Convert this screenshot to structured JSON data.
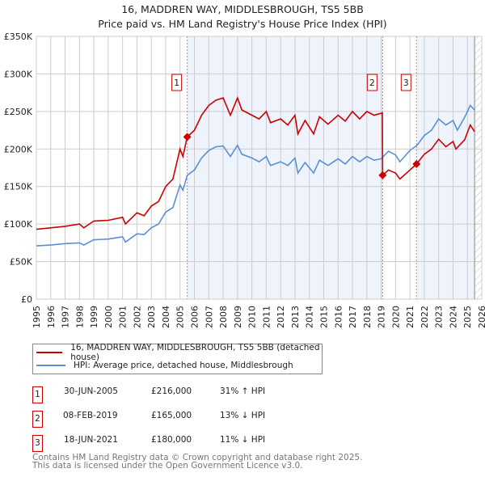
{
  "title": "16, MADDREN WAY, MIDDLESBROUGH, TS5 5BB",
  "subtitle": "Price paid vs. HM Land Registry's House Price Index (HPI)",
  "chart_data": {
    "type": "line",
    "title": "16, MADDREN WAY, MIDDLESBROUGH, TS5 5BB",
    "xlim": [
      1995,
      2026
    ],
    "ylim": [
      0,
      350000
    ],
    "yticks": [
      0,
      50000,
      100000,
      150000,
      200000,
      250000,
      300000,
      350000
    ],
    "ytick_labels": [
      "£0",
      "£50K",
      "£100K",
      "£150K",
      "£200K",
      "£250K",
      "£300K",
      "£350K"
    ],
    "xticks": [
      "1995",
      "1996",
      "1997",
      "1998",
      "1999",
      "2000",
      "2001",
      "2002",
      "2003",
      "2004",
      "2005",
      "2006",
      "2007",
      "2008",
      "2009",
      "2010",
      "2011",
      "2012",
      "2013",
      "2014",
      "2015",
      "2016",
      "2017",
      "2018",
      "2019",
      "2020",
      "2021",
      "2022",
      "2023",
      "2024",
      "2025",
      "2026"
    ],
    "grid": true,
    "legend_placement": "below",
    "series": [
      {
        "name": "16, MADDREN WAY, MIDDLESBROUGH, TS5 5BB (detached house)",
        "color": "#cc0000",
        "x": [
          1995,
          1996,
          1997,
          1998,
          1998.3,
          1999,
          2000,
          2001,
          2001.2,
          2002,
          2002.5,
          2003,
          2003.5,
          2004,
          2004.5,
          2005,
          2005.2,
          2005.5,
          2006,
          2006.5,
          2007,
          2007.5,
          2008,
          2008.5,
          2009,
          2009.3,
          2010,
          2010.5,
          2011,
          2011.3,
          2012,
          2012.5,
          2013,
          2013.2,
          2013.7,
          2014.3,
          2014.7,
          2015.3,
          2016,
          2016.5,
          2017,
          2017.5,
          2018,
          2018.5,
          2019.08,
          2019.1,
          2019.5,
          2020,
          2020.3,
          2021,
          2021.46,
          2022,
          2022.5,
          2023,
          2023.5,
          2024,
          2024.2,
          2024.8,
          2025.2,
          2025.5
        ],
        "y": [
          93000,
          95000,
          97000,
          100000,
          95000,
          104000,
          105000,
          109000,
          100000,
          115000,
          111000,
          124000,
          130000,
          150000,
          160000,
          200000,
          190000,
          216000,
          225000,
          245000,
          258000,
          265000,
          268000,
          245000,
          268000,
          252000,
          245000,
          240000,
          250000,
          235000,
          240000,
          232000,
          245000,
          220000,
          238000,
          220000,
          243000,
          233000,
          245000,
          237000,
          250000,
          240000,
          250000,
          245000,
          248000,
          165000,
          172000,
          168000,
          160000,
          172000,
          180000,
          193000,
          200000,
          213000,
          203000,
          210000,
          200000,
          212000,
          232000,
          223000
        ]
      },
      {
        "name": "HPI: Average price, detached house, Middlesbrough",
        "color": "#5b8fd4",
        "x": [
          1995,
          1996,
          1997,
          1998,
          1998.3,
          1999,
          2000,
          2001,
          2001.2,
          2002,
          2002.5,
          2003,
          2003.5,
          2004,
          2004.5,
          2005,
          2005.2,
          2005.5,
          2006,
          2006.5,
          2007,
          2007.5,
          2008,
          2008.5,
          2009,
          2009.3,
          2010,
          2010.5,
          2011,
          2011.3,
          2012,
          2012.5,
          2013,
          2013.2,
          2013.7,
          2014.3,
          2014.7,
          2015.3,
          2016,
          2016.5,
          2017,
          2017.5,
          2018,
          2018.5,
          2019,
          2019.5,
          2020,
          2020.3,
          2021,
          2021.5,
          2022,
          2022.5,
          2023,
          2023.5,
          2024,
          2024.3,
          2024.8,
          2025.2,
          2025.5
        ],
        "y": [
          71000,
          72000,
          74000,
          75000,
          72000,
          79000,
          80000,
          83000,
          76000,
          87000,
          86000,
          95000,
          100000,
          116000,
          122000,
          152000,
          145000,
          165000,
          172000,
          188000,
          198000,
          203000,
          204000,
          190000,
          205000,
          193000,
          188000,
          183000,
          190000,
          178000,
          183000,
          178000,
          188000,
          168000,
          182000,
          168000,
          185000,
          178000,
          187000,
          180000,
          190000,
          183000,
          190000,
          185000,
          187000,
          197000,
          192000,
          183000,
          198000,
          205000,
          218000,
          225000,
          240000,
          232000,
          238000,
          225000,
          242000,
          258000,
          252000
        ]
      }
    ],
    "sales": [
      {
        "label": "1",
        "x": 2005.5,
        "y": 216000
      },
      {
        "label": "2",
        "x": 2019.1,
        "y": 165000
      },
      {
        "label": "3",
        "x": 2021.46,
        "y": 180000
      }
    ],
    "shaded_ranges": [
      [
        2005.5,
        2019.1
      ],
      [
        2021.46,
        2025.5
      ]
    ],
    "forecast_from": 2025.5
  },
  "legend": [
    {
      "label": "16, MADDREN WAY, MIDDLESBROUGH, TS5 5BB (detached house)",
      "color": "#cc0000"
    },
    {
      "label": "HPI: Average price, detached house, Middlesbrough",
      "color": "#5b8fd4"
    }
  ],
  "table": [
    {
      "num": "1",
      "date": "30-JUN-2005",
      "price": "£216,000",
      "hpi": "31% ↑ HPI"
    },
    {
      "num": "2",
      "date": "08-FEB-2019",
      "price": "£165,000",
      "hpi": "13% ↓ HPI"
    },
    {
      "num": "3",
      "date": "18-JUN-2021",
      "price": "£180,000",
      "hpi": "11% ↓ HPI"
    }
  ],
  "footer": [
    "Contains HM Land Registry data © Crown copyright and database right 2025.",
    "This data is licensed under the Open Government Licence v3.0."
  ]
}
